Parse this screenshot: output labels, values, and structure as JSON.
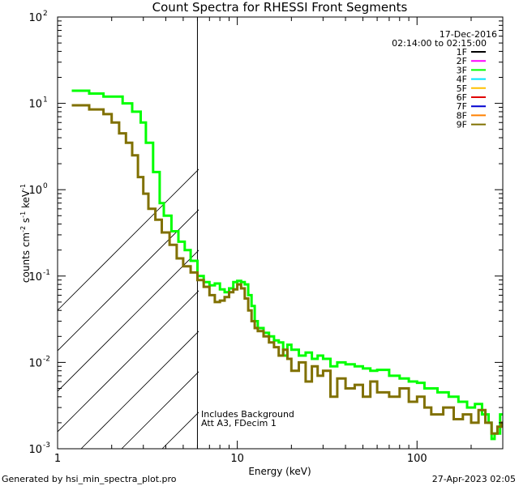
{
  "chart_data": {
    "type": "line",
    "title": "Count Spectra for RHESSI Front Segments",
    "xlabel": "Energy (keV)",
    "ylabel_parts": {
      "pre": "counts cm",
      "e1": "-2",
      "mid": " s",
      "e2": "-1",
      "mid2": " keV",
      "e3": "-1"
    },
    "xscale": "log",
    "yscale": "log",
    "xlim": [
      1,
      300
    ],
    "ylim": [
      0.001,
      100
    ],
    "x_ticks": [
      {
        "value": 1,
        "label": "1"
      },
      {
        "value": 10,
        "label": "10"
      },
      {
        "value": 100,
        "label": "100"
      }
    ],
    "y_ticks": [
      {
        "value": 0.001,
        "base": "10",
        "exp": "-3"
      },
      {
        "value": 0.01,
        "base": "10",
        "exp": "-2"
      },
      {
        "value": 0.1,
        "base": "10",
        "exp": "-1"
      },
      {
        "value": 1,
        "base": "10",
        "exp": "0"
      },
      {
        "value": 10,
        "base": "10",
        "exp": "1"
      },
      {
        "value": 100,
        "base": "10",
        "exp": "2"
      }
    ],
    "attenuator_cutoff_kev": 6,
    "date": "17-Dec-2016",
    "time_range": "02:14:00 to 02:15:00",
    "annotations": [
      "Includes Background",
      "Att A3, FDecim 1"
    ],
    "legend": [
      {
        "name": "1F",
        "color": "#000000"
      },
      {
        "name": "2F",
        "color": "#ff00ff"
      },
      {
        "name": "3F",
        "color": "#00ff00"
      },
      {
        "name": "4F",
        "color": "#00e5ff"
      },
      {
        "name": "5F",
        "color": "#ffc000"
      },
      {
        "name": "6F",
        "color": "#e00000"
      },
      {
        "name": "7F",
        "color": "#0000d0"
      },
      {
        "name": "8F",
        "color": "#ff8000"
      },
      {
        "name": "9F",
        "color": "#807000"
      }
    ],
    "series": [
      {
        "name": "3F",
        "color": "#00ff00",
        "points": [
          [
            1.2,
            14
          ],
          [
            1.5,
            13
          ],
          [
            1.8,
            12
          ],
          [
            2.0,
            12
          ],
          [
            2.3,
            10
          ],
          [
            2.6,
            8
          ],
          [
            2.9,
            6
          ],
          [
            3.1,
            3.5
          ],
          [
            3.4,
            1.6
          ],
          [
            3.7,
            0.7
          ],
          [
            3.9,
            0.5
          ],
          [
            4.3,
            0.33
          ],
          [
            4.7,
            0.25
          ],
          [
            5.1,
            0.2
          ],
          [
            5.5,
            0.15
          ],
          [
            6.0,
            0.1
          ],
          [
            6.5,
            0.085
          ],
          [
            7.0,
            0.078
          ],
          [
            7.5,
            0.082
          ],
          [
            8.0,
            0.07
          ],
          [
            8.5,
            0.065
          ],
          [
            9.0,
            0.072
          ],
          [
            9.5,
            0.085
          ],
          [
            10.0,
            0.088
          ],
          [
            10.5,
            0.085
          ],
          [
            11.0,
            0.08
          ],
          [
            11.5,
            0.06
          ],
          [
            12.0,
            0.045
          ],
          [
            12.5,
            0.03
          ],
          [
            13.0,
            0.025
          ],
          [
            14.0,
            0.022
          ],
          [
            15.0,
            0.02
          ],
          [
            16.0,
            0.018
          ],
          [
            17.0,
            0.017
          ],
          [
            18.0,
            0.012
          ],
          [
            19.0,
            0.016
          ],
          [
            20.0,
            0.014
          ],
          [
            22.0,
            0.012
          ],
          [
            24.0,
            0.013
          ],
          [
            26.0,
            0.011
          ],
          [
            28.0,
            0.012
          ],
          [
            30.0,
            0.011
          ],
          [
            33.0,
            0.009
          ],
          [
            36.0,
            0.01
          ],
          [
            40.0,
            0.0095
          ],
          [
            45.0,
            0.009
          ],
          [
            50.0,
            0.0085
          ],
          [
            55.0,
            0.008
          ],
          [
            60.0,
            0.0082
          ],
          [
            70.0,
            0.007
          ],
          [
            80.0,
            0.0065
          ],
          [
            90.0,
            0.006
          ],
          [
            100.0,
            0.0058
          ],
          [
            110.0,
            0.005
          ],
          [
            130.0,
            0.0045
          ],
          [
            150.0,
            0.004
          ],
          [
            170.0,
            0.0035
          ],
          [
            190.0,
            0.003
          ],
          [
            210.0,
            0.0033
          ],
          [
            230.0,
            0.0025
          ],
          [
            250.0,
            0.002
          ],
          [
            260.0,
            0.0013
          ],
          [
            270.0,
            0.0015
          ],
          [
            290.0,
            0.0025
          ]
        ]
      },
      {
        "name": "9F",
        "color": "#807000",
        "points": [
          [
            1.2,
            9.5
          ],
          [
            1.5,
            8.5
          ],
          [
            1.8,
            7.5
          ],
          [
            2.0,
            6
          ],
          [
            2.2,
            4.5
          ],
          [
            2.4,
            3.5
          ],
          [
            2.6,
            2.5
          ],
          [
            2.8,
            1.4
          ],
          [
            3.0,
            0.9
          ],
          [
            3.2,
            0.6
          ],
          [
            3.5,
            0.45
          ],
          [
            3.8,
            0.32
          ],
          [
            4.2,
            0.23
          ],
          [
            4.6,
            0.16
          ],
          [
            5.0,
            0.13
          ],
          [
            5.5,
            0.11
          ],
          [
            6.0,
            0.09
          ],
          [
            6.5,
            0.075
          ],
          [
            7.0,
            0.06
          ],
          [
            7.5,
            0.05
          ],
          [
            8.0,
            0.052
          ],
          [
            8.5,
            0.057
          ],
          [
            9.0,
            0.065
          ],
          [
            9.5,
            0.07
          ],
          [
            10.0,
            0.08
          ],
          [
            10.5,
            0.072
          ],
          [
            11.0,
            0.055
          ],
          [
            11.5,
            0.04
          ],
          [
            12.0,
            0.03
          ],
          [
            12.5,
            0.025
          ],
          [
            13.0,
            0.023
          ],
          [
            14.0,
            0.02
          ],
          [
            15.0,
            0.017
          ],
          [
            16.0,
            0.015
          ],
          [
            17.0,
            0.012
          ],
          [
            18.0,
            0.014
          ],
          [
            19.0,
            0.011
          ],
          [
            20.0,
            0.008
          ],
          [
            22.0,
            0.01
          ],
          [
            24.0,
            0.006
          ],
          [
            26.0,
            0.009
          ],
          [
            28.0,
            0.007
          ],
          [
            30.0,
            0.008
          ],
          [
            33.0,
            0.004
          ],
          [
            36.0,
            0.0065
          ],
          [
            40.0,
            0.005
          ],
          [
            45.0,
            0.0055
          ],
          [
            50.0,
            0.004
          ],
          [
            55.0,
            0.006
          ],
          [
            60.0,
            0.0045
          ],
          [
            70.0,
            0.004
          ],
          [
            80.0,
            0.005
          ],
          [
            90.0,
            0.0035
          ],
          [
            100.0,
            0.004
          ],
          [
            110.0,
            0.003
          ],
          [
            120.0,
            0.0025
          ],
          [
            140.0,
            0.003
          ],
          [
            160.0,
            0.0022
          ],
          [
            180.0,
            0.0025
          ],
          [
            200.0,
            0.002
          ],
          [
            220.0,
            0.0028
          ],
          [
            240.0,
            0.002
          ],
          [
            260.0,
            0.0015
          ],
          [
            280.0,
            0.0018
          ],
          [
            295.0,
            0.002
          ]
        ]
      }
    ]
  },
  "footer": {
    "generated_by": "Generated by hsi_min_spectra_plot.pro",
    "timestamp": "27-Apr-2023 02:05"
  }
}
